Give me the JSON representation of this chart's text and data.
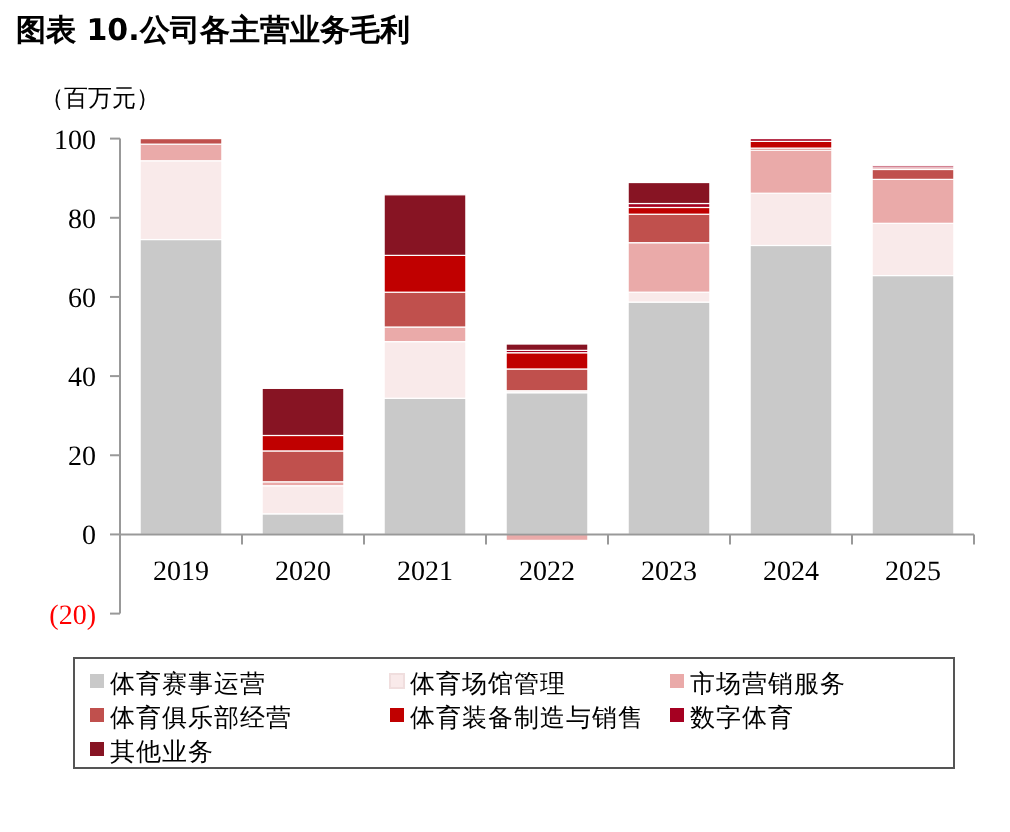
{
  "chart_data": {
    "type": "bar",
    "stacked": true,
    "title": "图表 10.公司各主营业务毛利",
    "ylabel": "（百万元）",
    "categories": [
      "2019",
      "2020",
      "2021",
      "2022",
      "2023",
      "2024",
      "2025"
    ],
    "ylim": [
      -20,
      100
    ],
    "yticks": [
      {
        "value": -20,
        "label": "(20)"
      },
      0,
      20,
      40,
      60,
      80,
      100
    ],
    "grid": false,
    "legend": "bottom",
    "series": [
      {
        "name": "体育赛事运营",
        "color": "#c9c9c9",
        "values": [
          74.5,
          5.2,
          34.4,
          35.8,
          58.7,
          73.0,
          65.4
        ]
      },
      {
        "name": "体育场馆管理",
        "color": "#f9eaea",
        "values": [
          19.9,
          7.1,
          14.3,
          0.5,
          2.5,
          13.2,
          13.2
        ]
      },
      {
        "name": "市场营销服务",
        "color": "#eaaaa9",
        "values": [
          4.2,
          1.0,
          3.7,
          -1.5,
          12.5,
          10.9,
          11.1
        ]
      },
      {
        "name": "体育俱乐部经营",
        "color": "#c0504d",
        "values": [
          1.4,
          7.8,
          8.8,
          5.5,
          7.2,
          0.5,
          2.5
        ]
      },
      {
        "name": "体育装备制造与销售",
        "color": "#c00000",
        "values": [
          0,
          3.9,
          9.3,
          4.1,
          1.7,
          1.7,
          0.4
        ]
      },
      {
        "name": "数字体育",
        "color": "#a50021",
        "values": [
          0,
          0,
          0,
          0.6,
          1.0,
          0.7,
          0.5
        ]
      },
      {
        "name": "其他业务",
        "color": "#871423",
        "values": [
          0,
          11.9,
          15.3,
          1.6,
          5.3,
          0,
          0
        ]
      }
    ]
  }
}
